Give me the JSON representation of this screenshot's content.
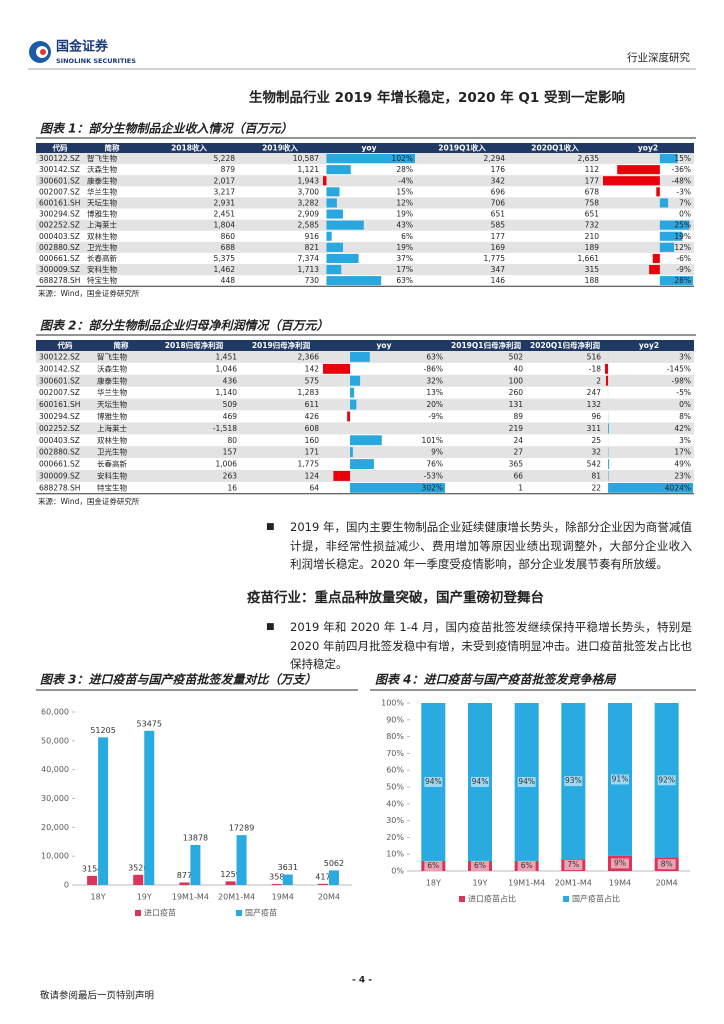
{
  "header": {
    "company": "国金证券",
    "company_en": "SINOLINK SECURITIES",
    "report_type": "行业深度研究"
  },
  "title": "生物制品行业 2019 年增长稳定，2020 年 Q1 受到一定影响",
  "table1": {
    "caption": "图表 1：部分生物制品企业收入情况（百万元）",
    "columns": [
      "代码",
      "简称",
      "2018收入",
      "2019收入",
      "yoy",
      "2019Q1收入",
      "2020Q1收入",
      "yoy2"
    ],
    "rows": [
      [
        "300122.SZ",
        "智飞生物",
        "5,228",
        "10,587",
        {
          "value": 102,
          "label": "102%"
        },
        "2,294",
        "2,635",
        {
          "value": 15,
          "label": "15%"
        }
      ],
      [
        "300142.SZ",
        "沃森生物",
        "879",
        "1,121",
        {
          "value": 28,
          "label": "28%"
        },
        "176",
        "112",
        {
          "value": -36,
          "label": "-36%"
        }
      ],
      [
        "300601.SZ",
        "康泰生物",
        "2,017",
        "1,943",
        {
          "value": -4,
          "label": "-4%"
        },
        "342",
        "177",
        {
          "value": -48,
          "label": "-48%"
        }
      ],
      [
        "002007.SZ",
        "华兰生物",
        "3,217",
        "3,700",
        {
          "value": 15,
          "label": "15%"
        },
        "696",
        "678",
        {
          "value": -3,
          "label": "-3%"
        }
      ],
      [
        "600161.SH",
        "天坛生物",
        "2,931",
        "3,282",
        {
          "value": 12,
          "label": "12%"
        },
        "706",
        "758",
        {
          "value": 7,
          "label": "7%"
        }
      ],
      [
        "300294.SZ",
        "博雅生物",
        "2,451",
        "2,909",
        {
          "value": 19,
          "label": "19%"
        },
        "651",
        "651",
        {
          "value": 0,
          "label": "0%"
        }
      ],
      [
        "002252.SZ",
        "上海莱士",
        "1,804",
        "2,585",
        {
          "value": 43,
          "label": "43%"
        },
        "585",
        "732",
        {
          "value": 25,
          "label": "25%"
        }
      ],
      [
        "000403.SZ",
        "双林生物",
        "860",
        "916",
        {
          "value": 6,
          "label": "6%"
        },
        "177",
        "210",
        {
          "value": 19,
          "label": "19%"
        }
      ],
      [
        "002880.SZ",
        "卫光生物",
        "688",
        "821",
        {
          "value": 19,
          "label": "19%"
        },
        "169",
        "189",
        {
          "value": 12,
          "label": "12%"
        }
      ],
      [
        "000661.SZ",
        "长春高新",
        "5,375",
        "7,374",
        {
          "value": 37,
          "label": "37%"
        },
        "1,775",
        "1,661",
        {
          "value": -6,
          "label": "-6%"
        }
      ],
      [
        "300009.SZ",
        "安科生物",
        "1,462",
        "1,713",
        {
          "value": 17,
          "label": "17%"
        },
        "347",
        "315",
        {
          "value": -9,
          "label": "-9%"
        }
      ],
      [
        "688278.SH",
        "特宝生物",
        "448",
        "730",
        {
          "value": 63,
          "label": "63%"
        },
        "146",
        "188",
        {
          "value": 28,
          "label": "28%"
        }
      ]
    ],
    "source": "来源：Wind，国金证券研究所"
  },
  "table2": {
    "caption": "图表 2：部分生物制品企业归母净利润情况（百万元）",
    "columns": [
      "代码",
      "简称",
      "2018归母净利润",
      "2019归母净利润",
      "yoy",
      "2019Q1归母净利润",
      "2020Q1归母净利润",
      "yoy2"
    ],
    "rows": [
      [
        "300122.SZ",
        "智飞生物",
        "1,451",
        "2,366",
        {
          "value": 63,
          "label": "63%"
        },
        "502",
        "516",
        {
          "value": 3,
          "label": "3%"
        }
      ],
      [
        "300142.SZ",
        "沃森生物",
        "1,046",
        "142",
        {
          "value": -86,
          "label": "-86%"
        },
        "40",
        "-18",
        {
          "value": -145,
          "label": "-145%"
        }
      ],
      [
        "300601.SZ",
        "康泰生物",
        "436",
        "575",
        {
          "value": 32,
          "label": "32%"
        },
        "100",
        "2",
        {
          "value": -98,
          "label": "-98%"
        }
      ],
      [
        "002007.SZ",
        "华兰生物",
        "1,140",
        "1,283",
        {
          "value": 13,
          "label": "13%"
        },
        "260",
        "247",
        {
          "value": -5,
          "label": "-5%"
        }
      ],
      [
        "600161.SH",
        "天坛生物",
        "509",
        "611",
        {
          "value": 20,
          "label": "20%"
        },
        "131",
        "132",
        {
          "value": 0,
          "label": "0%"
        }
      ],
      [
        "300294.SZ",
        "博雅生物",
        "469",
        "426",
        {
          "value": -9,
          "label": "-9%"
        },
        "89",
        "96",
        {
          "value": 8,
          "label": "8%"
        }
      ],
      [
        "002252.SZ",
        "上海莱士",
        "-1,518",
        "608",
        null,
        "219",
        "311",
        {
          "value": 42,
          "label": "42%"
        }
      ],
      [
        "000403.SZ",
        "双林生物",
        "80",
        "160",
        {
          "value": 101,
          "label": "101%"
        },
        "24",
        "25",
        {
          "value": 3,
          "label": "3%"
        }
      ],
      [
        "002880.SZ",
        "卫光生物",
        "157",
        "171",
        {
          "value": 9,
          "label": "9%"
        },
        "27",
        "32",
        {
          "value": 17,
          "label": "17%"
        }
      ],
      [
        "000661.SZ",
        "长春高新",
        "1,006",
        "1,775",
        {
          "value": 76,
          "label": "76%"
        },
        "365",
        "542",
        {
          "value": 49,
          "label": "49%"
        }
      ],
      [
        "300009.SZ",
        "安科生物",
        "263",
        "124",
        {
          "value": -53,
          "label": "-53%"
        },
        "66",
        "81",
        {
          "value": 23,
          "label": "23%"
        }
      ],
      [
        "688278.SH",
        "特宝生物",
        "16",
        "64",
        {
          "value": 302,
          "label": "302%"
        },
        "1",
        "22",
        {
          "value": 4024,
          "label": "4024%"
        }
      ]
    ],
    "source": "来源：Wind，国金证券研究所"
  },
  "paragraph1": "2019 年，国内主要生物制品企业延续健康增长势头，除部分企业因为商誉减值计提，非经常性损益减少、费用增加等原因业绩出现调整外，大部分企业收入利润增长稳定。2020 年一季度受疫情影响，部分企业发展节奏有所放缓。",
  "section_heading": "疫苗行业：重点品种放量突破，国产重磅初登舞台",
  "paragraph2": "2019 年和 2020 年 1-4 月，国内疫苗批签发继续保持平稳增长势头，特别是 2020 年前四月批签发稳中有增，未受到疫情明显冲击。进口疫苗批签发占比也保持稳定。",
  "chart_data": [
    {
      "type": "bar",
      "title": "图表 3：进口疫苗与国产疫苗批签发量对比（万支）",
      "categories": [
        "18Y",
        "19Y",
        "19M1-M4",
        "20M1-M4",
        "19M4",
        "20M4"
      ],
      "series": [
        {
          "name": "进口疫苗",
          "color": "#d9345a",
          "values": [
            3154,
            3526,
            877,
            1259,
            358,
            417
          ]
        },
        {
          "name": "国产疫苗",
          "color": "#29abe2",
          "values": [
            51205,
            53475,
            13878,
            17289,
            3631,
            5062
          ]
        }
      ],
      "ylim": [
        0,
        60000
      ],
      "yticks": [
        0,
        {
          "value": 10000,
          "label": "10,000"
        },
        {
          "value": 20000,
          "label": "20,000"
        },
        {
          "value": 30000,
          "label": "30,000"
        },
        {
          "value": 40000,
          "label": "40,000"
        },
        {
          "value": 50000,
          "label": "50,000"
        },
        {
          "value": 60000,
          "label": "60,000"
        }
      ],
      "legend": "bottom"
    },
    {
      "type": "stacked_bar",
      "title": "图表 4：进口疫苗与国产疫苗批签发竞争格局",
      "categories": [
        "18Y",
        "19Y",
        "19M1-M4",
        "20M1-M4",
        "19M4",
        "20M4"
      ],
      "series": [
        {
          "name": "进口疫苗占比",
          "color": "#d9345a",
          "values": [
            6,
            6,
            6,
            7,
            9,
            8
          ],
          "value_labels": [
            "6%",
            "6%",
            "6%",
            "7%",
            "9%",
            "8%"
          ]
        },
        {
          "name": "国产疫苗占比",
          "color": "#29abe2",
          "values": [
            94,
            94,
            94,
            93,
            91,
            92
          ],
          "value_labels": [
            "94%",
            "94%",
            "94%",
            "93%",
            "91%",
            "92%"
          ]
        }
      ],
      "ylim": [
        0,
        100
      ],
      "yticks": [
        {
          "value": 0,
          "label": "0%"
        },
        {
          "value": 10,
          "label": "10%"
        },
        {
          "value": 20,
          "label": "20%"
        },
        {
          "value": 30,
          "label": "30%"
        },
        {
          "value": 40,
          "label": "40%"
        },
        {
          "value": 50,
          "label": "50%"
        },
        {
          "value": 60,
          "label": "60%"
        },
        {
          "value": 70,
          "label": "70%"
        },
        {
          "value": 80,
          "label": "80%"
        },
        {
          "value": 90,
          "label": "90%"
        },
        {
          "value": 100,
          "label": "100%"
        }
      ],
      "legend": "bottom"
    }
  ],
  "footer": {
    "page": "- 4 -",
    "disclaimer": "敬请参阅最后一页特别声明"
  }
}
